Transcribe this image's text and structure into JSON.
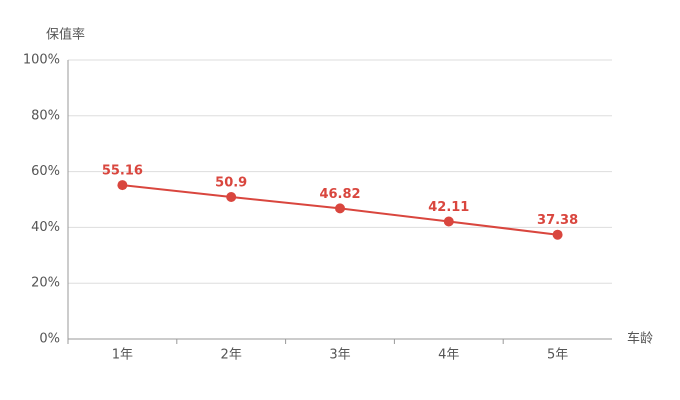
{
  "chart_data": {
    "type": "line",
    "y_label": "保值率",
    "x_label": "车龄",
    "categories": [
      "1年",
      "2年",
      "3年",
      "4年",
      "5年"
    ],
    "series": [
      {
        "name": "保值率",
        "color": "#d9463e",
        "values": [
          55.16,
          50.9,
          46.82,
          42.11,
          37.38
        ]
      }
    ],
    "ylim": [
      0,
      100
    ],
    "yticks": [
      {
        "value": 0,
        "label": "0%"
      },
      {
        "value": 20,
        "label": "20%"
      },
      {
        "value": 40,
        "label": "40%"
      },
      {
        "value": 60,
        "label": "60%"
      },
      {
        "value": 80,
        "label": "80%"
      },
      {
        "value": 100,
        "label": "100%"
      }
    ],
    "grid": true
  }
}
